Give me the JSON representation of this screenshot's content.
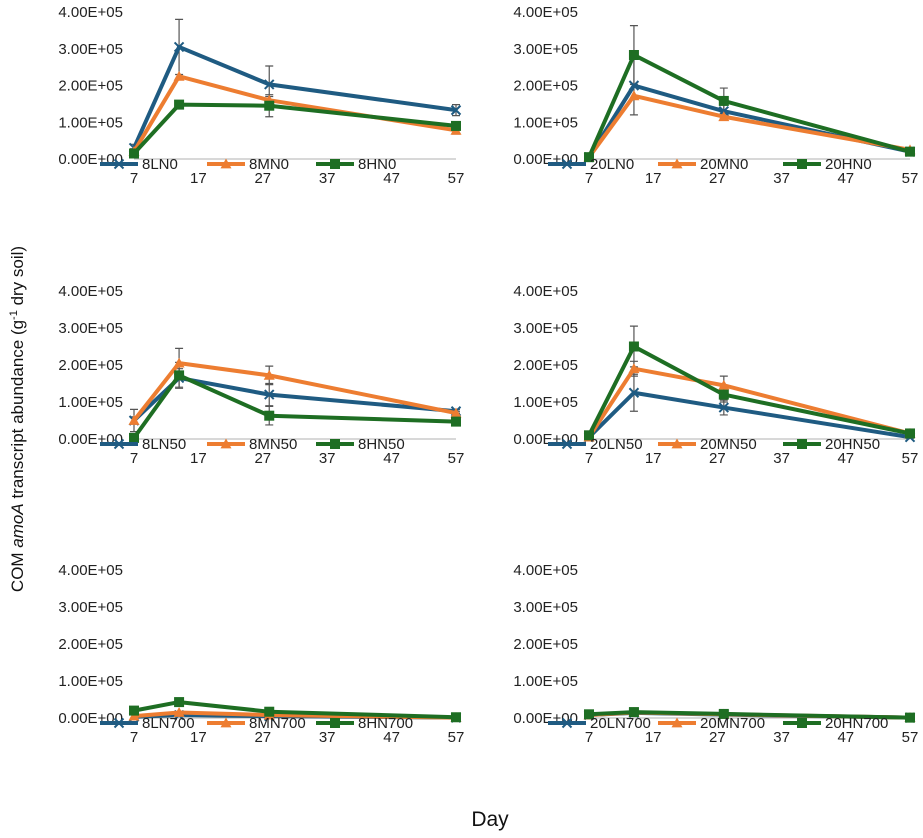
{
  "chart_data": {
    "type": "line",
    "layout": "3x2 grid of small-multiple line charts",
    "ylabel_prefix": "COM ",
    "ylabel_italic": "amoA",
    "ylabel_mid": " transcript abundance (g",
    "ylabel_sup": "-1",
    "ylabel_suffix": " dry soil)",
    "xlabel": "Day",
    "x_ticks": [
      "7",
      "17",
      "27",
      "37",
      "47",
      "57"
    ],
    "y_ticks": [
      "0.00E+00",
      "1.00E+05",
      "2.00E+05",
      "3.00E+05",
      "4.00E+05"
    ],
    "xlim": [
      7,
      57
    ],
    "ylim": [
      0,
      400000
    ],
    "colors": {
      "L": "#1f5b82",
      "M": "#ed7d31",
      "H": "#1e6e23"
    },
    "markers": {
      "L": "x",
      "M": "triangle",
      "H": "square"
    },
    "panels": [
      {
        "series": [
          {
            "name": "8LN0",
            "group": "L",
            "x": [
              7,
              14,
              28,
              57
            ],
            "values": [
              30000,
              305000,
              203000,
              133000
            ],
            "err": [
              10000,
              75000,
              50000,
              15000
            ]
          },
          {
            "name": "8MN0",
            "group": "M",
            "x": [
              7,
              14,
              28,
              57
            ],
            "values": [
              20000,
              225000,
              160000,
              78000
            ],
            "err": [
              8000,
              0,
              10000,
              10000
            ]
          },
          {
            "name": "8HN0",
            "group": "H",
            "x": [
              7,
              14,
              28,
              57
            ],
            "values": [
              15000,
              148000,
              145000,
              90000
            ],
            "err": [
              5000,
              0,
              30000,
              10000
            ]
          }
        ]
      },
      {
        "series": [
          {
            "name": "20LN0",
            "group": "L",
            "x": [
              7,
              14,
              28,
              57
            ],
            "values": [
              5000,
              200000,
              130000,
              20000
            ],
            "err": [
              3000,
              80000,
              20000,
              5000
            ]
          },
          {
            "name": "20MN0",
            "group": "M",
            "x": [
              7,
              14,
              28,
              57
            ],
            "values": [
              5000,
              172000,
              115000,
              25000
            ],
            "err": [
              3000,
              0,
              10000,
              5000
            ]
          },
          {
            "name": "20HN0",
            "group": "H",
            "x": [
              7,
              14,
              28,
              57
            ],
            "values": [
              5000,
              283000,
              158000,
              20000
            ],
            "err": [
              3000,
              80000,
              35000,
              10000
            ]
          }
        ]
      },
      {
        "series": [
          {
            "name": "8LN50",
            "group": "L",
            "x": [
              7,
              14,
              28,
              57
            ],
            "values": [
              50000,
              165000,
              120000,
              75000
            ],
            "err": [
              30000,
              25000,
              30000,
              5000
            ]
          },
          {
            "name": "8MN50",
            "group": "M",
            "x": [
              7,
              14,
              28,
              57
            ],
            "values": [
              50000,
              205000,
              172000,
              70000
            ],
            "err": [
              10000,
              40000,
              25000,
              5000
            ]
          },
          {
            "name": "8HN50",
            "group": "H",
            "x": [
              7,
              14,
              28,
              57
            ],
            "values": [
              3000,
              172000,
              63000,
              47000
            ],
            "err": [
              3000,
              35000,
              25000,
              5000
            ]
          }
        ]
      },
      {
        "series": [
          {
            "name": "20LN50",
            "group": "L",
            "x": [
              7,
              14,
              28,
              57
            ],
            "values": [
              5000,
              125000,
              85000,
              5000
            ],
            "err": [
              3000,
              50000,
              20000,
              3000
            ]
          },
          {
            "name": "20MN50",
            "group": "M",
            "x": [
              7,
              14,
              28,
              57
            ],
            "values": [
              5000,
              190000,
              145000,
              15000
            ],
            "err": [
              3000,
              20000,
              25000,
              5000
            ]
          },
          {
            "name": "20HN50",
            "group": "H",
            "x": [
              7,
              14,
              28,
              57
            ],
            "values": [
              10000,
              250000,
              120000,
              15000
            ],
            "err": [
              3000,
              55000,
              20000,
              5000
            ]
          }
        ]
      },
      {
        "series": [
          {
            "name": "8LN700",
            "group": "L",
            "x": [
              7,
              14,
              28,
              57
            ],
            "values": [
              3000,
              8000,
              5000,
              1000
            ],
            "err": [
              0,
              0,
              0,
              0
            ]
          },
          {
            "name": "8MN700",
            "group": "M",
            "x": [
              7,
              14,
              28,
              57
            ],
            "values": [
              5000,
              15000,
              8000,
              1000
            ],
            "err": [
              0,
              0,
              0,
              0
            ]
          },
          {
            "name": "8HN700",
            "group": "H",
            "x": [
              7,
              14,
              28,
              57
            ],
            "values": [
              20000,
              43000,
              17000,
              2000
            ],
            "err": [
              0,
              0,
              0,
              0
            ]
          }
        ]
      },
      {
        "series": [
          {
            "name": "20LN700",
            "group": "L",
            "x": [
              7,
              14,
              28,
              57
            ],
            "values": [
              8000,
              14000,
              9000,
              1000
            ],
            "err": [
              0,
              0,
              0,
              0
            ]
          },
          {
            "name": "20MN700",
            "group": "M",
            "x": [
              7,
              14,
              28,
              57
            ],
            "values": [
              8000,
              15000,
              10000,
              1000
            ],
            "err": [
              0,
              0,
              0,
              0
            ]
          },
          {
            "name": "20HN700",
            "group": "H",
            "x": [
              7,
              14,
              28,
              57
            ],
            "values": [
              10000,
              16000,
              11000,
              1000
            ],
            "err": [
              0,
              0,
              0,
              0
            ]
          }
        ]
      }
    ]
  }
}
